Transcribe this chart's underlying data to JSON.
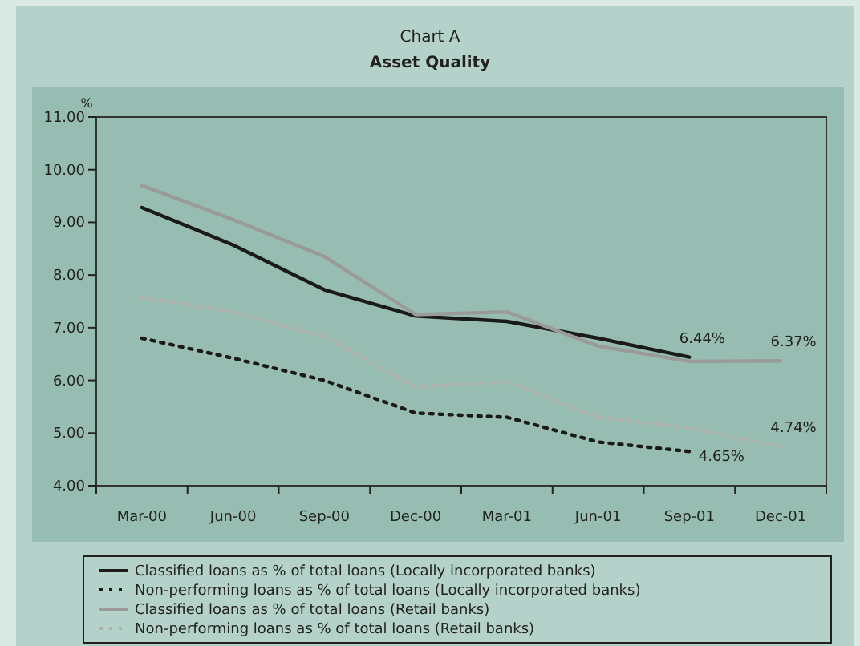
{
  "chart_data": {
    "type": "line",
    "title": "Chart A",
    "subtitle": "Asset Quality",
    "ylabel": "%",
    "categories": [
      "Mar-00",
      "Jun-00",
      "Sep-00",
      "Dec-00",
      "Mar-01",
      "Jun-01",
      "Sep-01",
      "Dec-01"
    ],
    "ylim": [
      4,
      11
    ],
    "yticks": [
      {
        "value": 4,
        "label": "4.00"
      },
      {
        "value": 5,
        "label": "5.00"
      },
      {
        "value": 6,
        "label": "6.00"
      },
      {
        "value": 7,
        "label": "7.00"
      },
      {
        "value": 8,
        "label": "8.00"
      },
      {
        "value": 9,
        "label": "9.00"
      },
      {
        "value": 10,
        "label": "10.00"
      },
      {
        "value": 11,
        "label": "11.00"
      }
    ],
    "grid": false,
    "legend": "bottom",
    "marker": "none",
    "series": [
      {
        "name": "Classified loans as % of total loans (Locally incorporated banks)",
        "color": "#1a1a1a",
        "line_style": "solid",
        "values": [
          9.28,
          8.57,
          7.72,
          7.22,
          7.12,
          6.8,
          6.44,
          null
        ],
        "value_labels": [
          null,
          null,
          null,
          null,
          null,
          null,
          "6.44%",
          null
        ]
      },
      {
        "name": "Non-performing loans as % of total loans (Locally incorporated banks)",
        "color": "#1a1a1a",
        "line_style": "dotted",
        "values": [
          6.8,
          6.42,
          6.0,
          5.38,
          5.3,
          4.83,
          4.65,
          null
        ],
        "value_labels": [
          null,
          null,
          null,
          null,
          null,
          null,
          "4.65%",
          null
        ]
      },
      {
        "name": "Classified loans as % of total loans (Retail banks)",
        "color": "#9a9a9a",
        "line_style": "solid",
        "values": [
          9.7,
          9.05,
          8.35,
          7.25,
          7.3,
          6.65,
          6.36,
          6.37
        ],
        "value_labels": [
          null,
          null,
          null,
          null,
          null,
          null,
          null,
          "6.37%"
        ]
      },
      {
        "name": "Non-performing loans as % of total loans (Retail banks)",
        "color": "#b0b0b0",
        "line_style": "dotted",
        "values": [
          7.58,
          7.3,
          6.83,
          5.88,
          5.98,
          5.3,
          5.1,
          4.74
        ],
        "value_labels": [
          null,
          null,
          null,
          null,
          null,
          null,
          null,
          "4.74%"
        ]
      }
    ]
  }
}
